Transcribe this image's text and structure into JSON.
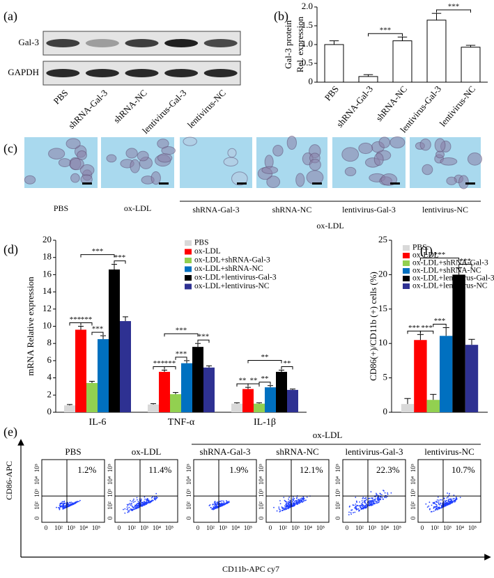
{
  "panel_labels": [
    "(a)",
    "(b)",
    "(c)",
    "(d)",
    "(e)",
    "(f)"
  ],
  "western_blot": {
    "rows": [
      "Gal-3",
      "GAPDH"
    ],
    "lanes": [
      "PBS",
      "shRNA-Gal-3",
      "shRNA-NC",
      "lentivirus-Gal-3",
      "lentivirus-NC"
    ]
  },
  "micrographs": {
    "labels": [
      "PBS",
      "ox-LDL",
      "shRNA-Gal-3",
      "shRNA-NC",
      "lentivirus-Gal-3",
      "lentivirus-NC"
    ],
    "group_label": "ox-LDL"
  },
  "flow_cytometry": {
    "labels": [
      "PBS",
      "ox-LDL",
      "shRNA-Gal-3",
      "shRNA-NC",
      "lentivirus-Gal-3",
      "lentivirus-NC"
    ],
    "percentages": [
      "1.2%",
      "11.4%",
      "1.9%",
      "12.1%",
      "22.3%",
      "10.7%"
    ],
    "group_label": "ox-LDL",
    "x_axis_label": "CD11b-APC cy7",
    "y_axis_label": "CD86-APC",
    "axis_ticks": [
      "0",
      "10²",
      "10³",
      "10⁴",
      "10⁵"
    ]
  },
  "chart_data": [
    {
      "type": "bar",
      "ylabel": [
        "Gal-3 protein",
        "Rel. expression"
      ],
      "categories": [
        "PBS",
        "shRNA-Gal-3",
        "shRNA-NC",
        "lentivirus-Gal-3",
        "lentivirus-NC"
      ],
      "values": [
        1.0,
        0.15,
        1.1,
        1.65,
        0.93
      ],
      "errors": [
        0.1,
        0.05,
        0.1,
        0.18,
        0.05
      ],
      "color": "#ffffff",
      "edgecolor": "#000000",
      "ylim": [
        0,
        2
      ],
      "yticks": [
        0,
        0.5,
        {
          "value": 1,
          "label": "1.0"
        },
        1.5,
        {
          "value": 2,
          "label": "2.0"
        }
      ],
      "significance": [
        {
          "between": [
            "shRNA-Gal-3",
            "shRNA-NC"
          ],
          "text": "***"
        },
        {
          "between": [
            "lentivirus-Gal-3",
            "lentivirus-NC"
          ],
          "text": "***"
        }
      ]
    },
    {
      "type": "bar",
      "ylabel": "mRNA Relative expression",
      "categories": [
        "IL-6",
        "TNF-α",
        "IL-1β"
      ],
      "series": [
        {
          "name": "PBS",
          "color": "#d9d9d9",
          "values": [
            0.8,
            0.9,
            1.0
          ],
          "errors": [
            0.1,
            0.1,
            0.1
          ]
        },
        {
          "name": "ox-LDL",
          "color": "#ff0000",
          "values": [
            9.6,
            4.7,
            2.7
          ],
          "errors": [
            0.4,
            0.2,
            0.2
          ]
        },
        {
          "name": "ox-LDL+shRNA-Gal-3",
          "color": "#92d050",
          "values": [
            3.4,
            2.1,
            1.0
          ],
          "errors": [
            0.2,
            0.2,
            0.1
          ]
        },
        {
          "name": "ox-LDL+shRNA-NC",
          "color": "#0070c0",
          "values": [
            8.5,
            5.7,
            2.9
          ],
          "errors": [
            0.4,
            0.3,
            0.2
          ]
        },
        {
          "name": "ox-LDL+lentivirus-Gal-3",
          "color": "#000000",
          "values": [
            16.6,
            7.6,
            4.7
          ],
          "errors": [
            0.6,
            0.4,
            0.2
          ]
        },
        {
          "name": "ox-LDL+lentivirus-NC",
          "color": "#2e3192",
          "values": [
            10.6,
            5.2,
            2.6
          ],
          "errors": [
            0.5,
            0.2,
            0.1
          ]
        }
      ],
      "ylim": [
        0,
        20
      ],
      "yticks": [
        0,
        2,
        4,
        6,
        8,
        10,
        12,
        14,
        16,
        18,
        20
      ],
      "significance": [
        {
          "category": "IL-6",
          "between": [
            "PBS",
            "ox-LDL"
          ],
          "text": "***"
        },
        {
          "category": "IL-6",
          "between": [
            "ox-LDL",
            "ox-LDL+shRNA-Gal-3"
          ],
          "text": "***"
        },
        {
          "category": "IL-6",
          "between": [
            "ox-LDL+shRNA-Gal-3",
            "ox-LDL+shRNA-NC"
          ],
          "text": "***"
        },
        {
          "category": "IL-6",
          "between": [
            "ox-LDL",
            "ox-LDL+lentivirus-Gal-3"
          ],
          "text": "***"
        },
        {
          "category": "IL-6",
          "between": [
            "ox-LDL+lentivirus-Gal-3",
            "ox-LDL+lentivirus-NC"
          ],
          "text": "***"
        },
        {
          "category": "TNF-α",
          "between": [
            "PBS",
            "ox-LDL"
          ],
          "text": "***"
        },
        {
          "category": "TNF-α",
          "between": [
            "ox-LDL",
            "ox-LDL+shRNA-Gal-3"
          ],
          "text": "***"
        },
        {
          "category": "TNF-α",
          "between": [
            "ox-LDL+shRNA-Gal-3",
            "ox-LDL+shRNA-NC"
          ],
          "text": "***"
        },
        {
          "category": "TNF-α",
          "between": [
            "ox-LDL",
            "ox-LDL+lentivirus-Gal-3"
          ],
          "text": "***"
        },
        {
          "category": "TNF-α",
          "between": [
            "ox-LDL+lentivirus-Gal-3",
            "ox-LDL+lentivirus-NC"
          ],
          "text": "***"
        },
        {
          "category": "IL-1β",
          "between": [
            "PBS",
            "ox-LDL"
          ],
          "text": "**"
        },
        {
          "category": "IL-1β",
          "between": [
            "ox-LDL",
            "ox-LDL+shRNA-Gal-3"
          ],
          "text": "**"
        },
        {
          "category": "IL-1β",
          "between": [
            "ox-LDL+shRNA-Gal-3",
            "ox-LDL+shRNA-NC"
          ],
          "text": "**"
        },
        {
          "category": "IL-1β",
          "between": [
            "ox-LDL",
            "ox-LDL+lentivirus-Gal-3"
          ],
          "text": "**"
        },
        {
          "category": "IL-1β",
          "between": [
            "ox-LDL+lentivirus-Gal-3",
            "ox-LDL+lentivirus-NC"
          ],
          "text": "**"
        }
      ]
    },
    {
      "type": "bar",
      "ylabel": "CD86(+)/CD11b (+) cells (%)",
      "categories": [
        null
      ],
      "series": [
        {
          "name": "PBS",
          "color": "#d9d9d9",
          "values": [
            1.2
          ],
          "errors": [
            0.8
          ]
        },
        {
          "name": "ox-LDL",
          "color": "#ff0000",
          "values": [
            10.5
          ],
          "errors": [
            0.8
          ]
        },
        {
          "name": "ox-LDL+shRNA-Gal-3",
          "color": "#92d050",
          "values": [
            1.8
          ],
          "errors": [
            0.8
          ]
        },
        {
          "name": "ox-LDL+shRNA-NC",
          "color": "#0070c0",
          "values": [
            11.1
          ],
          "errors": [
            1.2
          ]
        },
        {
          "name": "ox-LDL+lentivirus-Gal-3",
          "color": "#000000",
          "values": [
            20.0
          ],
          "errors": [
            1.0
          ]
        },
        {
          "name": "ox-LDL+lentivirus-NC",
          "color": "#2e3192",
          "values": [
            9.8
          ],
          "errors": [
            0.8
          ]
        }
      ],
      "ylim": [
        0,
        25
      ],
      "yticks": [
        0,
        5,
        10,
        15,
        20,
        25
      ],
      "significance": [
        {
          "between": [
            "PBS",
            "ox-LDL"
          ],
          "text": "***"
        },
        {
          "between": [
            "ox-LDL",
            "ox-LDL+shRNA-Gal-3"
          ],
          "text": "***"
        },
        {
          "between": [
            "ox-LDL+shRNA-Gal-3",
            "ox-LDL+shRNA-NC"
          ],
          "text": "***"
        },
        {
          "between": [
            "ox-LDL",
            "ox-LDL+lentivirus-Gal-3"
          ],
          "text": "***"
        },
        {
          "between": [
            "ox-LDL+lentivirus-Gal-3",
            "ox-LDL+lentivirus-NC"
          ],
          "text": "***"
        }
      ]
    }
  ]
}
